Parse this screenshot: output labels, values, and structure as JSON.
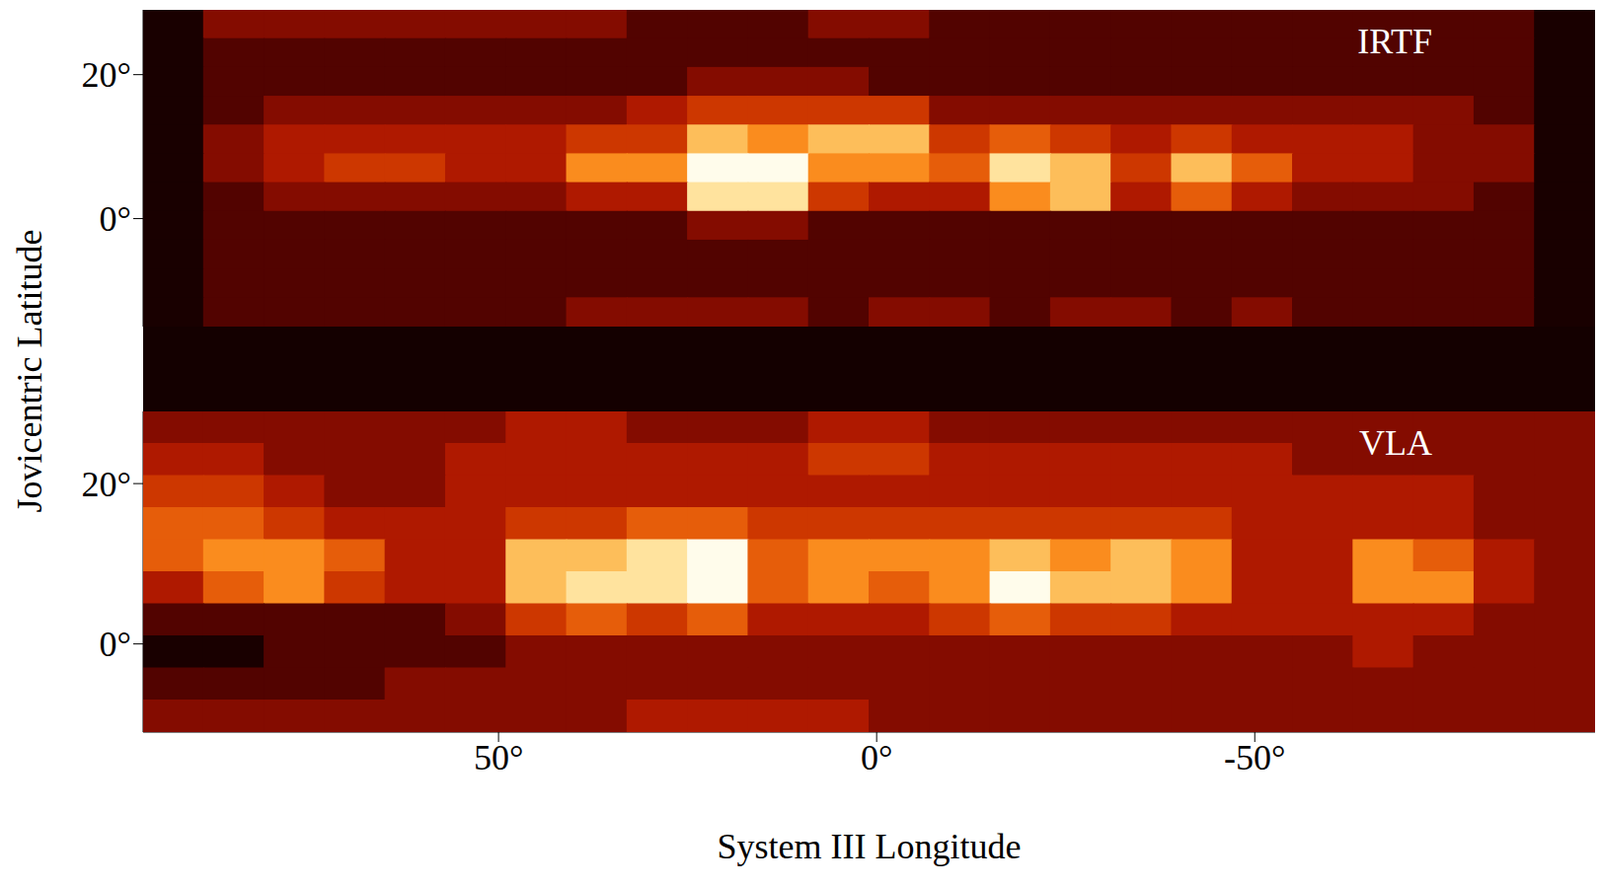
{
  "chart_data": {
    "type": "heatmap",
    "x_label": "System III Longitude",
    "y_label": "Jovicentric Latitude",
    "xlim": [
      97,
      -95
    ],
    "xticks": [
      {
        "value": 50,
        "label": "50°"
      },
      {
        "value": 0,
        "label": "0°"
      },
      {
        "value": -50,
        "label": "-50°"
      }
    ],
    "zlim": [
      0,
      9
    ],
    "x": [
      93,
      85,
      77,
      69,
      61,
      53,
      45,
      37,
      29,
      21,
      13,
      5,
      -3,
      -11,
      -19,
      -27,
      -35,
      -43,
      -51,
      -59,
      -67,
      -75,
      -83,
      -91
    ],
    "panels": [
      {
        "title": "IRTF",
        "ylim": [
          -15,
          29
        ],
        "yticks": [
          {
            "value": 0,
            "label": "0°"
          },
          {
            "value": 20,
            "label": "20°"
          }
        ],
        "y": [
          27,
          23,
          19,
          15,
          11,
          7,
          3,
          -1,
          -5,
          -9,
          -13
        ],
        "cells": [
          [
            0,
            2,
            2,
            2,
            2,
            2,
            2,
            2,
            1,
            1,
            1,
            2,
            2,
            1,
            1,
            1,
            1,
            1,
            1,
            1,
            1,
            1,
            1,
            0
          ],
          [
            0,
            1,
            1,
            1,
            1,
            1,
            1,
            1,
            1,
            1,
            1,
            1,
            1,
            1,
            1,
            1,
            1,
            1,
            1,
            1,
            1,
            1,
            1,
            0
          ],
          [
            0,
            1,
            1,
            1,
            1,
            1,
            1,
            1,
            1,
            2,
            2,
            2,
            1,
            1,
            1,
            1,
            1,
            1,
            1,
            1,
            1,
            1,
            1,
            0
          ],
          [
            0,
            1,
            2,
            2,
            2,
            2,
            2,
            2,
            3,
            4,
            4,
            4,
            4,
            2,
            2,
            2,
            2,
            2,
            2,
            2,
            2,
            2,
            1,
            0
          ],
          [
            0,
            2,
            3,
            3,
            3,
            3,
            3,
            4,
            4,
            7,
            6,
            7,
            7,
            4,
            5,
            4,
            3,
            4,
            3,
            3,
            3,
            2,
            2,
            0
          ],
          [
            0,
            2,
            3,
            4,
            4,
            3,
            3,
            6,
            6,
            9,
            9,
            6,
            6,
            5,
            8,
            7,
            4,
            7,
            5,
            3,
            3,
            2,
            2,
            0
          ],
          [
            0,
            1,
            2,
            2,
            2,
            2,
            2,
            3,
            3,
            8,
            8,
            4,
            3,
            3,
            6,
            7,
            3,
            5,
            3,
            2,
            2,
            2,
            1,
            0
          ],
          [
            0,
            1,
            1,
            1,
            1,
            1,
            1,
            1,
            1,
            2,
            2,
            1,
            1,
            1,
            1,
            1,
            1,
            1,
            1,
            1,
            1,
            1,
            1,
            0
          ],
          [
            0,
            1,
            1,
            1,
            1,
            1,
            1,
            1,
            1,
            1,
            1,
            1,
            1,
            1,
            1,
            1,
            1,
            1,
            1,
            1,
            1,
            1,
            1,
            0
          ],
          [
            0,
            1,
            1,
            1,
            1,
            1,
            1,
            1,
            1,
            1,
            1,
            1,
            1,
            1,
            1,
            1,
            1,
            1,
            1,
            1,
            1,
            1,
            1,
            0
          ],
          [
            0,
            1,
            1,
            1,
            1,
            1,
            1,
            2,
            2,
            2,
            2,
            1,
            2,
            2,
            1,
            2,
            2,
            1,
            2,
            1,
            1,
            1,
            1,
            0
          ]
        ]
      },
      {
        "title": "VLA",
        "ylim": [
          -11,
          29
        ],
        "yticks": [
          {
            "value": 0,
            "label": "0°"
          },
          {
            "value": 20,
            "label": "20°"
          }
        ],
        "y": [
          27,
          23,
          19,
          15,
          11,
          7,
          3,
          -1,
          -5,
          -9
        ],
        "cells": [
          [
            2,
            2,
            2,
            2,
            2,
            2,
            3,
            3,
            2,
            2,
            2,
            3,
            3,
            2,
            2,
            2,
            2,
            2,
            2,
            2,
            2,
            2,
            2,
            2
          ],
          [
            3,
            3,
            2,
            2,
            2,
            3,
            3,
            3,
            3,
            3,
            3,
            4,
            4,
            3,
            3,
            3,
            3,
            3,
            3,
            2,
            2,
            2,
            2,
            2
          ],
          [
            4,
            4,
            3,
            2,
            2,
            3,
            3,
            3,
            3,
            3,
            3,
            3,
            3,
            3,
            3,
            3,
            3,
            3,
            3,
            3,
            3,
            3,
            2,
            2
          ],
          [
            5,
            5,
            4,
            3,
            3,
            3,
            4,
            4,
            5,
            5,
            4,
            4,
            4,
            4,
            4,
            4,
            4,
            4,
            3,
            3,
            3,
            3,
            2,
            2
          ],
          [
            5,
            6,
            6,
            5,
            3,
            3,
            7,
            7,
            8,
            9,
            5,
            6,
            6,
            6,
            7,
            6,
            7,
            6,
            3,
            3,
            6,
            5,
            3,
            2
          ],
          [
            3,
            5,
            6,
            4,
            3,
            3,
            7,
            8,
            8,
            9,
            5,
            6,
            5,
            6,
            9,
            7,
            7,
            6,
            3,
            3,
            6,
            6,
            3,
            2
          ],
          [
            1,
            1,
            1,
            1,
            1,
            2,
            4,
            5,
            4,
            5,
            3,
            3,
            3,
            4,
            5,
            4,
            4,
            3,
            3,
            3,
            3,
            3,
            2,
            2
          ],
          [
            0,
            0,
            1,
            1,
            1,
            1,
            2,
            2,
            2,
            2,
            2,
            2,
            2,
            2,
            2,
            2,
            2,
            2,
            2,
            2,
            3,
            2,
            2,
            2
          ],
          [
            1,
            1,
            1,
            1,
            2,
            2,
            2,
            2,
            2,
            2,
            2,
            2,
            2,
            2,
            2,
            2,
            2,
            2,
            2,
            2,
            2,
            2,
            2,
            2
          ],
          [
            2,
            2,
            2,
            2,
            2,
            2,
            2,
            2,
            3,
            3,
            3,
            3,
            2,
            2,
            2,
            2,
            2,
            2,
            2,
            2,
            2,
            2,
            2,
            2
          ]
        ]
      }
    ]
  }
}
